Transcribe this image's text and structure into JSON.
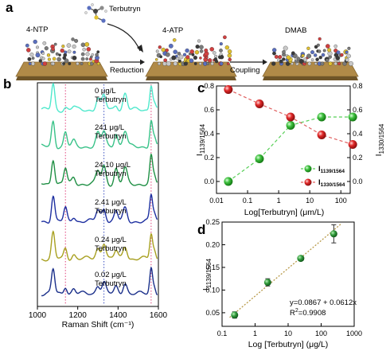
{
  "panel_a": {
    "label": "a",
    "terbutryn_label": "Terbutryn",
    "ntp_label": "4-NTP",
    "atp_label": "4-ATP",
    "dmab_label": "DMAB",
    "reduction_label": "Reduction",
    "coupling_label": "Coupling"
  },
  "panel_b": {
    "label": "b",
    "xlabel": "Raman Shift (cm⁻¹)"
  },
  "panel_c": {
    "label": "c",
    "xlabel": "Log[Terbutryn] (μm/L)",
    "ylabel_left": "1139/1564",
    "ylabel_right": "1330/1564",
    "legend": [
      "1139/1564",
      "1330/1564"
    ]
  },
  "panel_d": {
    "label": "d",
    "xlabel": "Log [Terbutryn] (μg/L)",
    "ylabel": "1139/1564",
    "equation": "y=0.0867 + 0.0612x",
    "r2_label": "2",
    "r2_value": "=0.9908"
  },
  "colors": {
    "reference_red": "#e0407a",
    "reference_blue": "#3a4fc0",
    "green_marker": "#3fc03f",
    "red_marker": "#e02828",
    "fit_line": "#b89a4a"
  },
  "chart_data": [
    {
      "type": "line",
      "panel": "b",
      "xlabel": "Raman Shift (cm⁻¹)",
      "xlim": [
        1000,
        1600
      ],
      "x_ticks": [
        1000,
        1200,
        1400,
        1600
      ],
      "reference_lines": [
        {
          "x": 1139,
          "color": "#e0407a",
          "style": "dotted"
        },
        {
          "x": 1330,
          "color": "#3a4fc0",
          "style": "dotted"
        },
        {
          "x": 1564,
          "color": "#e0407a",
          "style": "dotted"
        }
      ],
      "peaks": [
        {
          "x": 1078,
          "width": 8
        },
        {
          "x": 1139,
          "width": 8
        },
        {
          "x": 1180,
          "width": 9
        },
        {
          "x": 1300,
          "width": 10
        },
        {
          "x": 1330,
          "width": 10
        },
        {
          "x": 1390,
          "width": 9
        },
        {
          "x": 1435,
          "width": 10
        },
        {
          "x": 1564,
          "width": 7
        },
        {
          "x": 1580,
          "width": 7
        }
      ],
      "series": [
        {
          "name": "0 μg/L",
          "label_lines": [
            "0 μg/L",
            "Terbutryn"
          ],
          "color": "#4ee8cc",
          "peak_heights": [
            1.0,
            0.1,
            0.12,
            0.45,
            0.55,
            0.2,
            0.65,
            1.0,
            0.3
          ]
        },
        {
          "name": "241 μg/L",
          "label_lines": [
            "241 μg/L",
            "Terbutryn"
          ],
          "color": "#38c288",
          "peak_heights": [
            1.0,
            0.55,
            0.2,
            0.5,
            0.6,
            0.55,
            0.6,
            1.0,
            0.3
          ]
        },
        {
          "name": "24.10 μg/L",
          "label_lines": [
            "24.10 μg/L",
            "Terbutryn"
          ],
          "color": "#1f8f44",
          "peak_heights": [
            1.0,
            0.6,
            0.25,
            0.5,
            0.7,
            0.6,
            0.6,
            1.05,
            0.3
          ]
        },
        {
          "name": "2.41 μg/L",
          "label_lines": [
            "2.41 μg/L",
            "Terbutryn"
          ],
          "color": "#1d2fa0",
          "peak_heights": [
            1.0,
            0.5,
            0.2,
            0.45,
            0.5,
            0.4,
            0.5,
            1.0,
            0.3
          ]
        },
        {
          "name": "0.24 μg/L",
          "label_lines": [
            "0.24 μg/L",
            "Terbutryn"
          ],
          "color": "#a8a020",
          "peak_heights": [
            1.0,
            0.4,
            0.18,
            0.4,
            0.65,
            0.3,
            0.5,
            0.95,
            0.3
          ]
        },
        {
          "name": "0.02 μg/L",
          "label_lines": [
            "0.02 μg/L",
            "Terbutryn"
          ],
          "color": "#1a2f8a",
          "peak_heights": [
            0.95,
            0.3,
            0.2,
            0.35,
            0.45,
            0.25,
            0.45,
            1.0,
            0.3
          ]
        }
      ]
    },
    {
      "type": "line",
      "panel": "c",
      "xlabel": "Log[Terbutryn] (μm/L)",
      "ylabel_left": "I1139/1564",
      "ylabel_right": "I1330/1564",
      "x_scale": "log",
      "xlim": [
        0.01,
        200
      ],
      "x_ticks": [
        0.01,
        0.1,
        1,
        10,
        100
      ],
      "ylim_left": [
        -0.1,
        0.8
      ],
      "ylim_right": [
        -0.1,
        0.8
      ],
      "y_ticks": [
        0.0,
        0.2,
        0.4,
        0.6,
        0.8
      ],
      "y_tick_labels": [
        "0.0",
        "0.2",
        "0.4",
        "0.6",
        "0.8"
      ],
      "x": [
        0.024,
        0.241,
        2.41,
        24.1,
        241
      ],
      "series": [
        {
          "name": "I1139/1564",
          "axis": "left",
          "color": "#3fc03f",
          "line_color": "#58cf58",
          "values": [
            0.0,
            0.19,
            0.47,
            0.54,
            0.54
          ]
        },
        {
          "name": "I1330/1564",
          "axis": "right",
          "color": "#e02828",
          "line_color": "#e06060",
          "values": [
            0.77,
            0.65,
            0.54,
            0.39,
            0.31
          ]
        }
      ]
    },
    {
      "type": "scatter",
      "panel": "d",
      "xlabel": "Log [Terbutryn] (μg/L)",
      "ylabel": "I1139/1564",
      "x_scale": "log",
      "xlim": [
        0.1,
        1000
      ],
      "x_ticks": [
        0.1,
        1,
        10,
        100,
        1000
      ],
      "ylim": [
        0.02,
        0.25
      ],
      "y_ticks": [
        0.05,
        0.1,
        0.15,
        0.2,
        0.25
      ],
      "y_tick_labels": [
        "0.05",
        "0.10",
        "0.15",
        "0.20",
        "0.25"
      ],
      "x": [
        0.24,
        2.41,
        24.1,
        241
      ],
      "values": [
        0.045,
        0.117,
        0.17,
        0.224
      ],
      "errors": [
        0.007,
        0.008,
        0.004,
        0.02
      ],
      "fit": {
        "intercept": 0.0867,
        "slope": 0.0612,
        "r2": 0.9908
      }
    }
  ]
}
